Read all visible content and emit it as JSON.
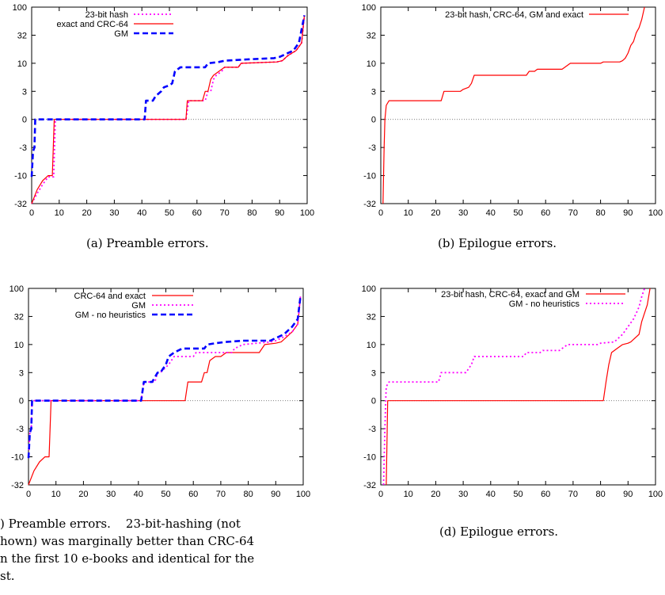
{
  "captions": {
    "a": "(a)  Preamble errors.",
    "b": "(b)  Epilogue errors.",
    "c": ") Preamble errors.    23-bit-hashing (not\nhown) was marginally better than CRC-64\nn the first 10 e-books and identical for the\nst.",
    "d": "(d)  Epilogue errors."
  },
  "y_ticks": [
    "100",
    "32",
    "10",
    "3",
    "0",
    "-3",
    "-10",
    "-32"
  ],
  "x_ticks": [
    "0",
    "10",
    "20",
    "30",
    "40",
    "50",
    "60",
    "70",
    "80",
    "90",
    "100"
  ],
  "colors": {
    "red": "#ff0000",
    "magenta": "#ff00ff",
    "blue": "#0000ff"
  },
  "chart_data": [
    {
      "id": "a",
      "type": "line",
      "xlim": [
        0,
        100
      ],
      "y_scale": "symmetric-log",
      "yticks": [
        100,
        32,
        10,
        3,
        0,
        -3,
        -10,
        -32
      ],
      "series": [
        {
          "name": "23-bit hash",
          "color": "#ff00ff",
          "style": "dotted",
          "points": [
            [
              0,
              -32
            ],
            [
              2,
              -24
            ],
            [
              4,
              -17
            ],
            [
              6,
              -11
            ],
            [
              8,
              -11
            ],
            [
              8.6,
              0
            ],
            [
              56,
              0
            ],
            [
              57,
              2
            ],
            [
              63,
              2
            ],
            [
              64,
              3
            ],
            [
              65,
              3
            ],
            [
              66,
              6
            ],
            [
              67,
              7
            ],
            [
              69,
              8
            ],
            [
              70,
              9
            ],
            [
              75,
              9
            ],
            [
              76,
              10
            ],
            [
              89,
              11
            ],
            [
              91,
              12
            ],
            [
              93,
              16
            ],
            [
              96,
              20
            ],
            [
              98,
              26
            ],
            [
              99,
              80
            ]
          ]
        },
        {
          "name": "exact and CRC-64",
          "color": "#ff0000",
          "style": "solid",
          "points": [
            [
              0,
              -32
            ],
            [
              2,
              -21
            ],
            [
              4,
              -14
            ],
            [
              6,
              -10
            ],
            [
              7.5,
              -10
            ],
            [
              8.2,
              0
            ],
            [
              56,
              0
            ],
            [
              56.5,
              2
            ],
            [
              62,
              2
            ],
            [
              63,
              3
            ],
            [
              64,
              3
            ],
            [
              65,
              6
            ],
            [
              66,
              7
            ],
            [
              68,
              8
            ],
            [
              70,
              9
            ],
            [
              75,
              9
            ],
            [
              76,
              10
            ],
            [
              89,
              11
            ],
            [
              91,
              12
            ],
            [
              93,
              16
            ],
            [
              96,
              20
            ],
            [
              98,
              26
            ],
            [
              99,
              80
            ]
          ]
        },
        {
          "name": "GM",
          "color": "#0000ff",
          "style": "dashed",
          "points": [
            [
              0,
              -11
            ],
            [
              0.5,
              -4
            ],
            [
              1,
              -3
            ],
            [
              1.3,
              0
            ],
            [
              41,
              0
            ],
            [
              41.5,
              2
            ],
            [
              44,
              2
            ],
            [
              45,
              2.5
            ],
            [
              47,
              3
            ],
            [
              48,
              4
            ],
            [
              50,
              4.5
            ],
            [
              51,
              5
            ],
            [
              52,
              8
            ],
            [
              54,
              9
            ],
            [
              63,
              9
            ],
            [
              64,
              10
            ],
            [
              68,
              11
            ],
            [
              70,
              12
            ],
            [
              78,
              13
            ],
            [
              88,
              14
            ],
            [
              90,
              15
            ],
            [
              95,
              20
            ],
            [
              97,
              26
            ],
            [
              99,
              80
            ]
          ]
        }
      ]
    },
    {
      "id": "b",
      "type": "line",
      "xlim": [
        0,
        100
      ],
      "y_scale": "symmetric-log",
      "yticks": [
        100,
        32,
        10,
        3,
        0,
        -3,
        -10,
        -32
      ],
      "series": [
        {
          "name": "23-bit hash, CRC-64, GM and exact",
          "color": "#ff0000",
          "style": "solid",
          "points": [
            [
              0.8,
              -32
            ],
            [
              1.2,
              -3
            ],
            [
              1.5,
              0
            ],
            [
              2,
              1.5
            ],
            [
              3,
              2
            ],
            [
              22,
              2
            ],
            [
              23,
              3
            ],
            [
              29,
              3
            ],
            [
              30,
              3.5
            ],
            [
              32,
              4
            ],
            [
              33,
              5
            ],
            [
              34,
              7
            ],
            [
              53,
              7
            ],
            [
              54,
              8
            ],
            [
              56,
              8
            ],
            [
              57,
              8.5
            ],
            [
              66,
              8.5
            ],
            [
              67,
              9
            ],
            [
              69,
              10
            ],
            [
              80,
              10
            ],
            [
              81,
              11
            ],
            [
              87,
              11
            ],
            [
              88,
              12
            ],
            [
              89,
              14
            ],
            [
              90,
              18
            ],
            [
              91,
              24
            ],
            [
              92,
              27
            ],
            [
              93,
              38
            ],
            [
              94,
              50
            ],
            [
              95,
              70
            ],
            [
              96,
              100
            ]
          ]
        }
      ]
    },
    {
      "id": "c",
      "type": "line",
      "xlim": [
        0,
        100
      ],
      "y_scale": "symmetric-log",
      "yticks": [
        100,
        32,
        10,
        3,
        0,
        -3,
        -10,
        -32
      ],
      "series": [
        {
          "name": "CRC-64 and exact",
          "color": "#ff0000",
          "style": "solid",
          "points": [
            [
              0,
              -32
            ],
            [
              2,
              -21
            ],
            [
              4,
              -14
            ],
            [
              6,
              -10
            ],
            [
              7.5,
              -10
            ],
            [
              8.2,
              0
            ],
            [
              57,
              0
            ],
            [
              58,
              2
            ],
            [
              63,
              2
            ],
            [
              64,
              3
            ],
            [
              65,
              3
            ],
            [
              66,
              6
            ],
            [
              68,
              7
            ],
            [
              70,
              7
            ],
            [
              72,
              8
            ],
            [
              84,
              8
            ],
            [
              86,
              10
            ],
            [
              90,
              11
            ],
            [
              92,
              12
            ],
            [
              94,
              16
            ],
            [
              96,
              20
            ],
            [
              98,
              26
            ],
            [
              99,
              80
            ]
          ]
        },
        {
          "name": "GM",
          "color": "#ff00ff",
          "style": "dotted",
          "points": [
            [
              0,
              -11
            ],
            [
              0.5,
              -4
            ],
            [
              1,
              -3
            ],
            [
              1.3,
              0
            ],
            [
              41,
              0
            ],
            [
              42,
              2
            ],
            [
              46,
              2
            ],
            [
              47,
              3
            ],
            [
              48,
              3
            ],
            [
              51,
              5
            ],
            [
              52,
              6
            ],
            [
              53,
              7
            ],
            [
              60,
              7
            ],
            [
              61,
              8
            ],
            [
              74,
              8
            ],
            [
              75,
              9
            ],
            [
              78,
              10
            ],
            [
              88,
              12
            ],
            [
              90,
              13
            ],
            [
              93,
              16
            ],
            [
              96,
              20
            ],
            [
              98,
              26
            ],
            [
              99,
              80
            ]
          ]
        },
        {
          "name": "GM - no heuristics",
          "color": "#0000ff",
          "style": "dashed",
          "points": [
            [
              0,
              -11
            ],
            [
              0.5,
              -4
            ],
            [
              1,
              -3
            ],
            [
              1.3,
              0
            ],
            [
              41,
              0
            ],
            [
              42,
              2
            ],
            [
              45,
              2
            ],
            [
              46,
              2.5
            ],
            [
              47,
              3
            ],
            [
              48,
              3
            ],
            [
              50,
              5
            ],
            [
              51,
              7
            ],
            [
              53,
              8
            ],
            [
              56,
              9
            ],
            [
              64,
              9
            ],
            [
              65,
              10
            ],
            [
              68,
              11
            ],
            [
              72,
              12
            ],
            [
              78,
              13
            ],
            [
              88,
              13
            ],
            [
              90,
              15
            ],
            [
              93,
              18
            ],
            [
              96,
              24
            ],
            [
              98,
              30
            ],
            [
              99,
              80
            ]
          ]
        }
      ]
    },
    {
      "id": "d",
      "type": "line",
      "xlim": [
        0,
        100
      ],
      "y_scale": "symmetric-log",
      "yticks": [
        100,
        32,
        10,
        3,
        0,
        -3,
        -10,
        -32
      ],
      "series": [
        {
          "name": "23-bit hash, CRC-64, exact and GM",
          "color": "#ff0000",
          "style": "solid",
          "points": [
            [
              2,
              -32
            ],
            [
              2.5,
              0
            ],
            [
              81,
              0
            ],
            [
              82,
              2
            ],
            [
              83,
              5
            ],
            [
              84,
              8
            ],
            [
              86,
              9
            ],
            [
              88,
              10
            ],
            [
              90,
              11
            ],
            [
              91,
              12
            ],
            [
              92,
              14
            ],
            [
              94,
              18
            ],
            [
              95,
              28
            ],
            [
              96,
              40
            ],
            [
              97,
              60
            ],
            [
              98,
              100
            ]
          ]
        },
        {
          "name": "GM -  no heuristics",
          "color": "#ff00ff",
          "style": "dotted",
          "points": [
            [
              1,
              -32
            ],
            [
              1.5,
              -3
            ],
            [
              1.8,
              0
            ],
            [
              2,
              1.5
            ],
            [
              3,
              2
            ],
            [
              21,
              2
            ],
            [
              22,
              3
            ],
            [
              31,
              3
            ],
            [
              32,
              4
            ],
            [
              33,
              5
            ],
            [
              34,
              7
            ],
            [
              52,
              7
            ],
            [
              53,
              8
            ],
            [
              58,
              8
            ],
            [
              59,
              8.5
            ],
            [
              65,
              8.5
            ],
            [
              66,
              9
            ],
            [
              68,
              10
            ],
            [
              79,
              10
            ],
            [
              80,
              11
            ],
            [
              85,
              12
            ],
            [
              86,
              14
            ],
            [
              88,
              18
            ],
            [
              90,
              24
            ],
            [
              92,
              30
            ],
            [
              93,
              40
            ],
            [
              94,
              55
            ],
            [
              95,
              80
            ],
            [
              96,
              100
            ]
          ]
        }
      ]
    }
  ]
}
